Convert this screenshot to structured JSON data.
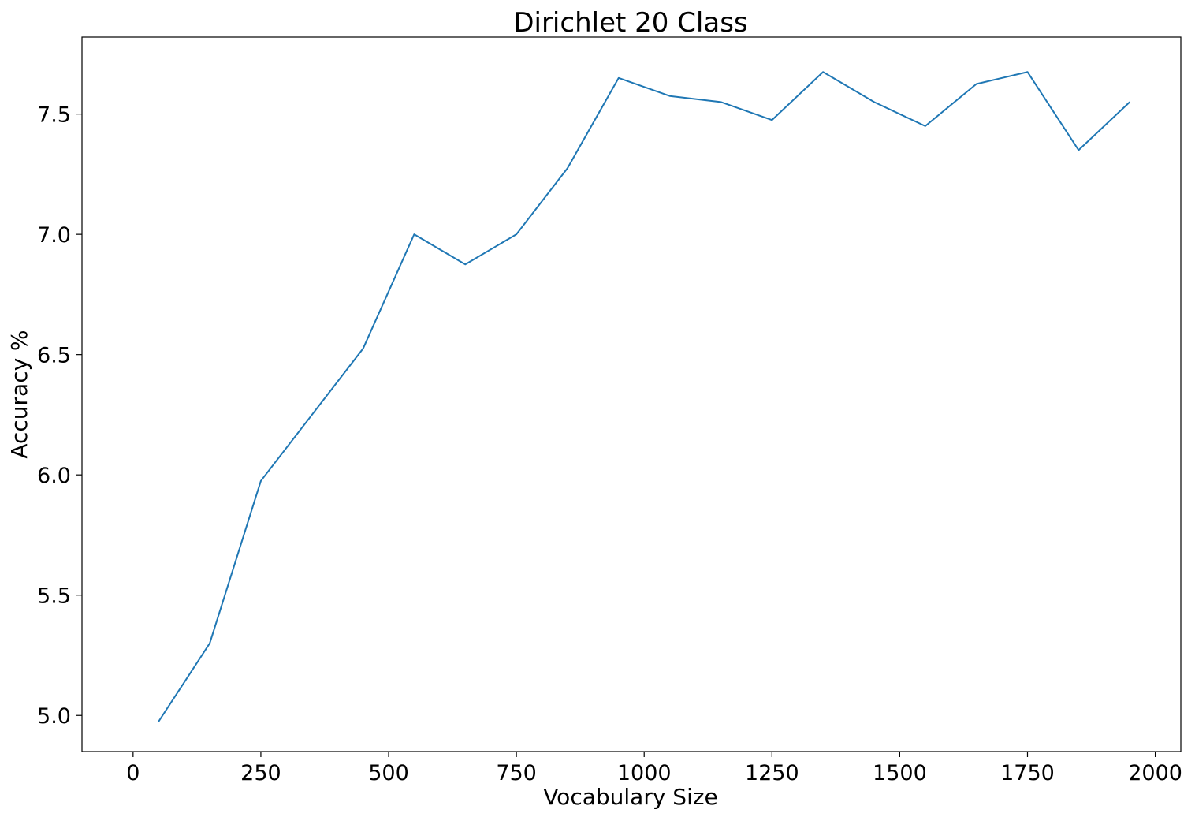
{
  "chart_data": {
    "type": "line",
    "title": "Dirichlet 20 Class",
    "xlabel": "Vocabulary Size",
    "ylabel": "Accuracy %",
    "xlim": [
      -100,
      2050
    ],
    "ylim": [
      4.85,
      7.82
    ],
    "xticks": [
      0,
      250,
      500,
      750,
      1000,
      1250,
      1500,
      1750,
      2000
    ],
    "xtick_labels": [
      "0",
      "250",
      "500",
      "750",
      "1000",
      "1250",
      "1500",
      "1750",
      "2000"
    ],
    "yticks": [
      5.0,
      5.5,
      6.0,
      6.5,
      7.0,
      7.5
    ],
    "ytick_labels": [
      "5.0",
      "5.5",
      "6.0",
      "6.5",
      "7.0",
      "7.5"
    ],
    "grid": false,
    "series": [
      {
        "color": "#1f77b4",
        "x": [
          50,
          150,
          250,
          350,
          450,
          550,
          650,
          750,
          850,
          950,
          1050,
          1150,
          1250,
          1350,
          1450,
          1550,
          1650,
          1750,
          1850,
          1950
        ],
        "y": [
          4.975,
          5.3,
          5.975,
          6.25,
          6.525,
          7.0,
          6.875,
          7.0,
          7.275,
          7.65,
          7.575,
          7.55,
          7.475,
          7.675,
          7.55,
          7.45,
          7.625,
          7.675,
          7.35,
          7.55
        ]
      }
    ]
  }
}
